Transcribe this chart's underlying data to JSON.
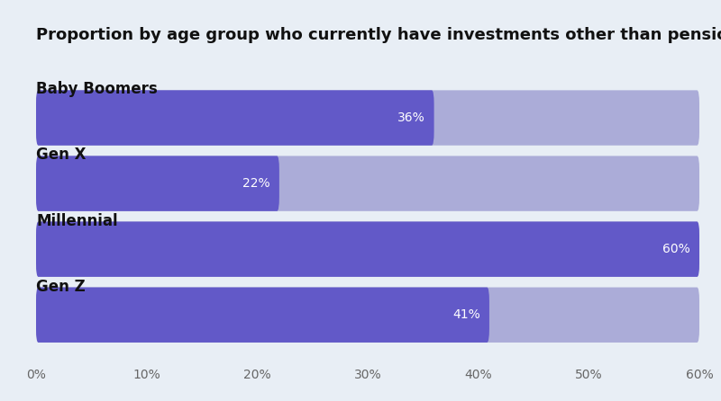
{
  "title": "Proportion by age group who currently have investments other than pensions",
  "categories": [
    "Baby Boomers",
    "Gen X",
    "Millennial",
    "Gen Z"
  ],
  "values": [
    36,
    22,
    60,
    41
  ],
  "max_value": 60,
  "bar_color_dark": "#6259C8",
  "bar_color_light": "#ABACD8",
  "background_color": "#E8EEF5",
  "text_color_title": "#111111",
  "text_color_label": "#111111",
  "label_fontsize": 12,
  "title_fontsize": 13,
  "tick_labels": [
    "0%",
    "10%",
    "20%",
    "30%",
    "40%",
    "50%",
    "60%"
  ]
}
